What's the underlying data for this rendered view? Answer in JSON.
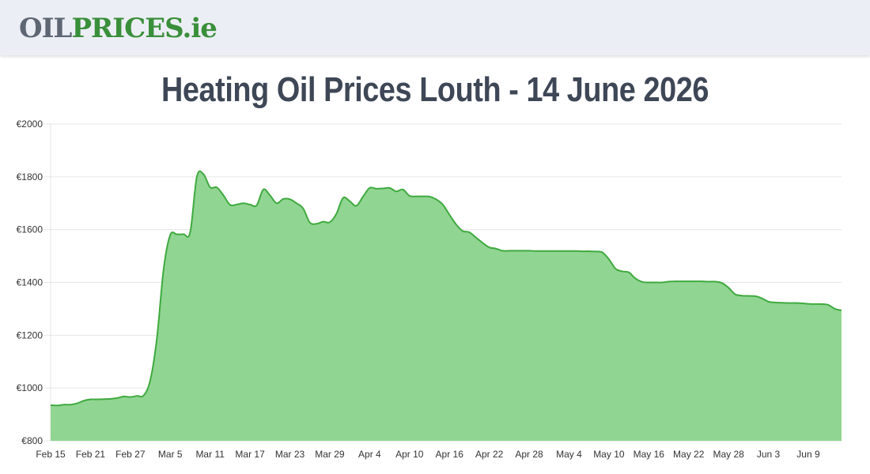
{
  "header": {
    "logo_part1": "OIL",
    "logo_part2": "PRICES.ie"
  },
  "chart_data": {
    "type": "area",
    "title": "Heating Oil Prices Louth - 14 June 2026",
    "xlabel": "",
    "ylabel": "",
    "ylim": [
      800,
      2000
    ],
    "y_ticks": [
      800,
      1000,
      1200,
      1400,
      1600,
      1800,
      2000
    ],
    "y_tick_labels": [
      "€800",
      "€1000",
      "€1200",
      "€1400",
      "€1600",
      "€1800",
      "€2000"
    ],
    "x_tick_labels": [
      "Feb 15",
      "Feb 21",
      "Feb 27",
      "Mar 5",
      "Mar 11",
      "Mar 17",
      "Mar 23",
      "Mar 29",
      "Apr 4",
      "Apr 10",
      "Apr 16",
      "Apr 22",
      "Apr 28",
      "May 4",
      "May 10",
      "May 16",
      "May 22",
      "May 28",
      "Jun 3",
      "Jun 9"
    ],
    "x_tick_index": [
      0,
      6,
      12,
      18,
      24,
      30,
      36,
      42,
      48,
      54,
      60,
      66,
      72,
      78,
      84,
      90,
      96,
      102,
      108,
      114
    ],
    "x_count": 120,
    "grid": true,
    "color_line": "#3faa3f",
    "color_fill": "#91d592",
    "series": [
      {
        "values": [
          935,
          934,
          937,
          937,
          942,
          952,
          957,
          957,
          958,
          959,
          962,
          968,
          966,
          970,
          972,
          1030,
          1190,
          1450,
          1580,
          1582,
          1583,
          1590,
          1800,
          1810,
          1760,
          1760,
          1730,
          1694,
          1695,
          1700,
          1695,
          1692,
          1752,
          1730,
          1700,
          1716,
          1715,
          1700,
          1680,
          1627,
          1622,
          1630,
          1628,
          1660,
          1720,
          1708,
          1690,
          1725,
          1758,
          1755,
          1756,
          1758,
          1745,
          1752,
          1728,
          1726,
          1726,
          1725,
          1715,
          1695,
          1657,
          1620,
          1595,
          1590,
          1570,
          1550,
          1533,
          1528,
          1520,
          1520,
          1520,
          1520,
          1520,
          1519,
          1519,
          1519,
          1519,
          1519,
          1519,
          1519,
          1518,
          1518,
          1517,
          1514,
          1488,
          1452,
          1442,
          1438,
          1415,
          1402,
          1400,
          1400,
          1400,
          1403,
          1404,
          1404,
          1404,
          1404,
          1404,
          1403,
          1403,
          1398,
          1380,
          1355,
          1350,
          1349,
          1348,
          1340,
          1327,
          1324,
          1323,
          1322,
          1322,
          1321,
          1319,
          1318,
          1318,
          1315,
          1300,
          1294
        ]
      }
    ]
  }
}
